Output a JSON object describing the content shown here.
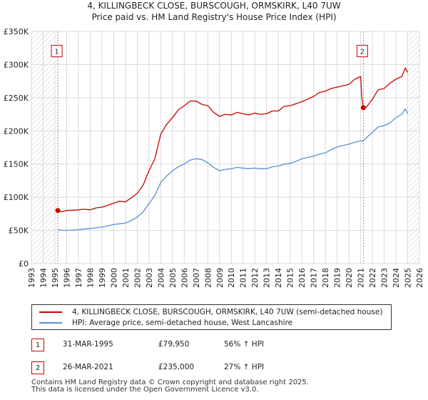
{
  "chart_data": {
    "type": "line",
    "title": "4, KILLINGBECK CLOSE, BURSCOUGH, ORMSKIRK, L40 7UW",
    "subtitle": "Price paid vs. HM Land Registry's House Price Index (HPI)",
    "xlabel": "",
    "ylabel": "",
    "xlim": [
      1993,
      2026
    ],
    "ylim": [
      0,
      350000
    ],
    "x_ticks": [
      "1993",
      "1994",
      "1995",
      "1996",
      "1997",
      "1998",
      "1999",
      "2000",
      "2001",
      "2002",
      "2003",
      "2004",
      "2005",
      "2006",
      "2007",
      "2008",
      "2009",
      "2010",
      "2011",
      "2012",
      "2013",
      "2014",
      "2015",
      "2016",
      "2017",
      "2018",
      "2019",
      "2020",
      "2021",
      "2022",
      "2023",
      "2024",
      "2025",
      "2026"
    ],
    "y_ticks": [
      {
        "value": 0,
        "label": "£0"
      },
      {
        "value": 50000,
        "label": "£50K"
      },
      {
        "value": 100000,
        "label": "£100K"
      },
      {
        "value": 150000,
        "label": "£150K"
      },
      {
        "value": 200000,
        "label": "£200K"
      },
      {
        "value": 250000,
        "label": "£250K"
      },
      {
        "value": 300000,
        "label": "£300K"
      },
      {
        "value": 350000,
        "label": "£350K"
      }
    ],
    "grid": true,
    "hatched_ranges": [
      [
        1993,
        1995.0
      ],
      [
        2025.1,
        2026
      ]
    ],
    "series": [
      {
        "name": "4, KILLINGBECK CLOSE, BURSCOUGH, ORMSKIRK, L40 7UW (semi-detached house)",
        "color": "#cc0000",
        "x": [
          1995.25,
          1995.5,
          1996.0,
          1996.5,
          1997.0,
          1997.5,
          1998.0,
          1998.5,
          1999.0,
          1999.5,
          2000.0,
          2000.5,
          2001.0,
          2001.5,
          2002.0,
          2002.5,
          2003.0,
          2003.5,
          2004.0,
          2004.5,
          2005.0,
          2005.5,
          2006.0,
          2006.5,
          2007.0,
          2007.5,
          2008.0,
          2008.5,
          2009.0,
          2009.5,
          2010.0,
          2010.5,
          2011.0,
          2011.5,
          2012.0,
          2012.5,
          2013.0,
          2013.5,
          2014.0,
          2014.5,
          2015.0,
          2015.5,
          2016.0,
          2016.5,
          2017.0,
          2017.5,
          2018.0,
          2018.5,
          2019.0,
          2019.5,
          2020.0,
          2020.5,
          2021.0,
          2021.1,
          2021.23,
          2021.5,
          2022.0,
          2022.5,
          2023.0,
          2023.5,
          2024.0,
          2024.5,
          2024.8,
          2025.0
        ],
        "y": [
          79950,
          78000,
          80000,
          80500,
          81000,
          82000,
          81000,
          84000,
          85000,
          88000,
          91000,
          94000,
          93000,
          99000,
          106000,
          118000,
          140000,
          158000,
          195000,
          210000,
          220000,
          232000,
          238000,
          245000,
          245000,
          240000,
          238000,
          228000,
          222000,
          225000,
          224000,
          228000,
          226000,
          224000,
          227000,
          225000,
          226000,
          230000,
          230000,
          237000,
          238000,
          241000,
          244000,
          248000,
          252000,
          258000,
          260000,
          264000,
          266000,
          268000,
          270000,
          278000,
          282000,
          250000,
          235000,
          236000,
          248000,
          262000,
          264000,
          272000,
          278000,
          282000,
          295000,
          288000
        ]
      },
      {
        "name": "HPI: Average price, semi-detached house, West Lancashire",
        "color": "#5b8fd1",
        "x": [
          1995.25,
          1995.5,
          1996.0,
          1996.5,
          1997.0,
          1997.5,
          1998.0,
          1998.5,
          1999.0,
          1999.5,
          2000.0,
          2000.5,
          2001.0,
          2001.5,
          2002.0,
          2002.5,
          2003.0,
          2003.5,
          2004.0,
          2004.5,
          2005.0,
          2005.5,
          2006.0,
          2006.5,
          2007.0,
          2007.5,
          2008.0,
          2008.5,
          2009.0,
          2009.5,
          2010.0,
          2010.5,
          2011.0,
          2011.5,
          2012.0,
          2012.5,
          2013.0,
          2013.5,
          2014.0,
          2014.5,
          2015.0,
          2015.5,
          2016.0,
          2016.5,
          2017.0,
          2017.5,
          2018.0,
          2018.5,
          2019.0,
          2019.5,
          2020.0,
          2020.5,
          2021.0,
          2021.23,
          2021.5,
          2022.0,
          2022.5,
          2023.0,
          2023.5,
          2024.0,
          2024.5,
          2024.8,
          2025.0
        ],
        "y": [
          51200,
          50500,
          50000,
          50500,
          51000,
          52000,
          53000,
          54000,
          55000,
          57000,
          59000,
          60000,
          61000,
          65000,
          70000,
          78000,
          90000,
          103000,
          122000,
          132000,
          140000,
          146000,
          150000,
          156000,
          158000,
          157000,
          152000,
          145000,
          140000,
          142000,
          143000,
          145000,
          144000,
          143000,
          144000,
          143000,
          143000,
          146000,
          147000,
          150000,
          151000,
          154000,
          158000,
          160000,
          162000,
          165000,
          167000,
          172000,
          176000,
          178000,
          180000,
          183000,
          185000,
          185000,
          190000,
          198000,
          206000,
          208000,
          212000,
          220000,
          225000,
          233000,
          226000
        ]
      }
    ],
    "sale_markers": [
      {
        "label": "1",
        "x": 1995.25,
        "y": 79950
      },
      {
        "label": "2",
        "x": 2021.23,
        "y": 235000
      }
    ]
  },
  "legend": {
    "property_label": "4, KILLINGBECK CLOSE, BURSCOUGH, ORMSKIRK, L40 7UW (semi-detached house)",
    "hpi_label": "HPI: Average price, semi-detached house, West Lancashire"
  },
  "sales": [
    {
      "num": "1",
      "date": "31-MAR-1995",
      "price": "£79,950",
      "hpi": "56% ↑ HPI"
    },
    {
      "num": "2",
      "date": "26-MAR-2021",
      "price": "£235,000",
      "hpi": "27% ↑ HPI"
    }
  ],
  "footer": {
    "line1": "Contains HM Land Registry data © Crown copyright and database right 2025.",
    "line2": "This data is licensed under the Open Government Licence v3.0."
  }
}
